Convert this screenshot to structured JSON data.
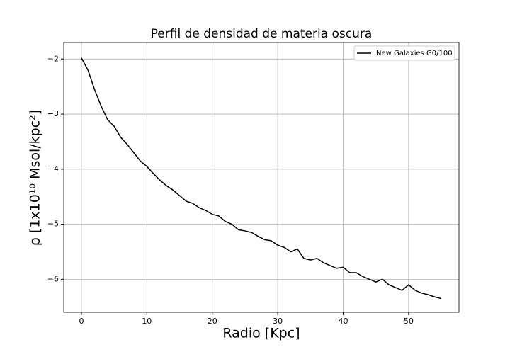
{
  "chart_data": {
    "type": "line",
    "title": "Perfil de densidad de materia oscura",
    "x_label": "Radio [Kpc]",
    "y_label": "ρ [1x10¹⁰ Msol/kpc²]",
    "x": [
      0,
      1,
      2,
      3,
      4,
      5,
      6,
      7,
      8,
      9,
      10,
      11,
      12,
      13,
      14,
      15,
      16,
      17,
      18,
      19,
      20,
      21,
      22,
      23,
      24,
      25,
      26,
      27,
      28,
      29,
      30,
      31,
      32,
      33,
      34,
      35,
      36,
      37,
      38,
      39,
      40,
      41,
      42,
      43,
      44,
      45,
      46,
      47,
      48,
      49,
      50,
      51,
      52,
      53,
      54,
      55
    ],
    "series": [
      {
        "name": "New Galaxies G0/100",
        "color": "#000000",
        "values": [
          -1.98,
          -2.2,
          -2.55,
          -2.85,
          -3.1,
          -3.22,
          -3.42,
          -3.55,
          -3.7,
          -3.85,
          -3.95,
          -4.08,
          -4.2,
          -4.3,
          -4.38,
          -4.48,
          -4.58,
          -4.62,
          -4.7,
          -4.75,
          -4.82,
          -4.85,
          -4.95,
          -5.0,
          -5.1,
          -5.12,
          -5.15,
          -5.22,
          -5.28,
          -5.3,
          -5.38,
          -5.42,
          -5.5,
          -5.45,
          -5.62,
          -5.65,
          -5.62,
          -5.7,
          -5.75,
          -5.8,
          -5.78,
          -5.88,
          -5.88,
          -5.95,
          -6.0,
          -6.05,
          -6.0,
          -6.1,
          -6.15,
          -6.2,
          -6.1,
          -6.2,
          -6.25,
          -6.28,
          -6.32,
          -6.35
        ]
      }
    ],
    "xlim": [
      -2.7,
      57.7
    ],
    "ylim": [
      -6.6,
      -1.7
    ],
    "xticks": [
      0,
      10,
      20,
      30,
      40,
      50
    ],
    "yticks": [
      {
        "value": -2,
        "label": "−2"
      },
      {
        "value": -3,
        "label": "−3"
      },
      {
        "value": -4,
        "label": "−4"
      },
      {
        "value": -5,
        "label": "−5"
      },
      {
        "value": -6,
        "label": "−6"
      }
    ],
    "grid": true,
    "legend": "upper right"
  }
}
